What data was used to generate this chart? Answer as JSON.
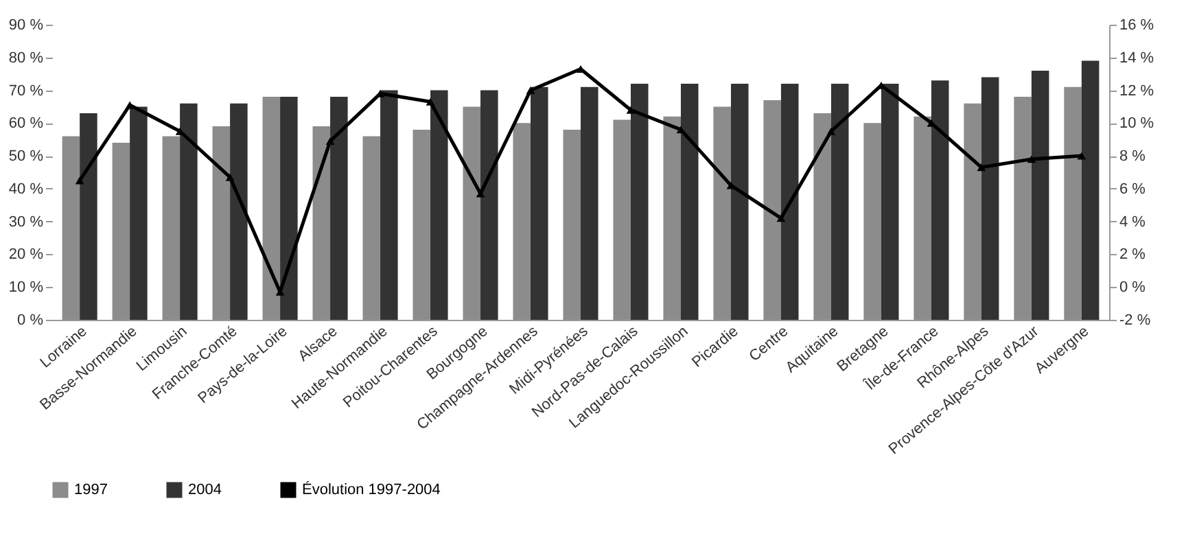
{
  "chart_data": {
    "type": "bar",
    "categories": [
      "Lorraine",
      "Basse-Normandie",
      "Limousin",
      "Franche-Comté",
      "Pays-de-la-Loire",
      "Alsace",
      "Haute-Normandie",
      "Poitou-Charentes",
      "Bourgogne",
      "Champagne-Ardennes",
      "Midi-Pyrénées",
      "Nord-Pas-de-Calais",
      "Languedoc-Roussillon",
      "Picardie",
      "Centre",
      "Aquitaine",
      "Bretagne",
      "Île-de-France",
      "Rhône-Alpes",
      "Provence-Alpes-Côte d'Azur",
      "Auvergne"
    ],
    "series": [
      {
        "name": "1997",
        "color": "#8c8c8c",
        "values": [
          56,
          54,
          56,
          59,
          68,
          59,
          56,
          58,
          65,
          60,
          58,
          61,
          62,
          65,
          67,
          63,
          60,
          62,
          66,
          68,
          71
        ]
      },
      {
        "name": "2004",
        "color": "#333333",
        "values": [
          63,
          65,
          66,
          66,
          68,
          68,
          70,
          70,
          70,
          71,
          71,
          72,
          72,
          72,
          72,
          72,
          72,
          73,
          74,
          76,
          79
        ]
      },
      {
        "name": "Évolution 1997-2004",
        "type": "line",
        "axis": "y2",
        "color": "#000000",
        "marker": "triangle",
        "values": [
          6.5,
          11.1,
          9.5,
          6.7,
          -0.3,
          8.9,
          11.8,
          11.3,
          5.7,
          12,
          13.3,
          10.8,
          9.6,
          6.2,
          4.2,
          9.5,
          12.3,
          10,
          7.3,
          7.8,
          8
        ]
      }
    ],
    "ylim": [
      0,
      90
    ],
    "yticks": [
      {
        "value": 0,
        "label": "0 %"
      },
      {
        "value": 10,
        "label": "10 %"
      },
      {
        "value": 20,
        "label": "20 %"
      },
      {
        "value": 30,
        "label": "30 %"
      },
      {
        "value": 40,
        "label": "40 %"
      },
      {
        "value": 50,
        "label": "50 %"
      },
      {
        "value": 60,
        "label": "60 %"
      },
      {
        "value": 70,
        "label": "70 %"
      },
      {
        "value": 80,
        "label": "80 %"
      },
      {
        "value": 90,
        "label": "90 %"
      }
    ],
    "y2lim": [
      -2,
      16
    ],
    "y2ticks": [
      {
        "value": -2,
        "label": "-2 %"
      },
      {
        "value": 0,
        "label": "0 %"
      },
      {
        "value": 2,
        "label": "2 %"
      },
      {
        "value": 4,
        "label": "4 %"
      },
      {
        "value": 6,
        "label": "6 %"
      },
      {
        "value": 8,
        "label": "8 %"
      },
      {
        "value": 10,
        "label": "10 %"
      },
      {
        "value": 12,
        "label": "12 %"
      },
      {
        "value": 14,
        "label": "14 %"
      },
      {
        "value": 16,
        "label": "16 %"
      }
    ],
    "grid": false,
    "legend": "bottom left"
  }
}
